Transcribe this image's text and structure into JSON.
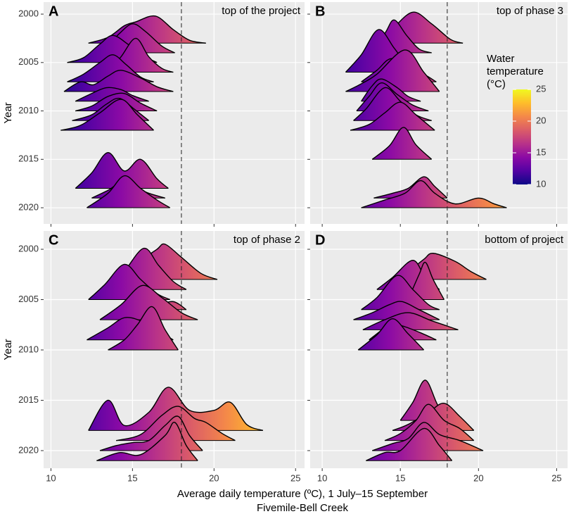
{
  "chart_data": [
    {
      "type": "ridgeline",
      "label": "A",
      "title": "top of the project",
      "xlim": [
        9.55,
        25.55
      ],
      "xticks": [
        10,
        15,
        20,
        25
      ],
      "ylim": [
        1998.76,
        2021.67
      ],
      "yticks": [
        2000,
        2005,
        2010,
        2015,
        2020
      ],
      "ylabel": "Year",
      "vline": 18,
      "ridges": [
        {
          "year": 2003,
          "x": [
            12.3,
            13.5,
            14.5,
            15.2,
            16.4,
            17.5,
            18.5,
            19.5
          ],
          "values": [
            0,
            0.6,
            1.8,
            2.2,
            2.8,
            1.4,
            0.3,
            0
          ]
        },
        {
          "year": 2004,
          "x": [
            12.5,
            13.5,
            14.2,
            15,
            15.8,
            16.8,
            17.6
          ],
          "values": [
            0,
            0.8,
            2,
            3,
            2.2,
            0.7,
            0
          ]
        },
        {
          "year": 2005,
          "x": [
            11,
            12,
            13,
            13.8,
            14.8,
            15.8,
            16.5
          ],
          "values": [
            0,
            0.5,
            1.9,
            2.8,
            1.8,
            0.6,
            0
          ]
        },
        {
          "year": 2006,
          "x": [
            13.5,
            14.3,
            15.2,
            16,
            16.8,
            17.5
          ],
          "values": [
            0,
            1.6,
            3.5,
            1.6,
            0.4,
            0
          ]
        },
        {
          "year": 2007,
          "x": [
            11,
            12,
            13,
            13.8,
            14.6,
            15.5,
            16.3
          ],
          "values": [
            0,
            0.8,
            2,
            2.8,
            1.8,
            0.5,
            0
          ]
        },
        {
          "year": 2008,
          "x": [
            10.8,
            11.8,
            12.6,
            13.5,
            14.3,
            15.5,
            16.5,
            17.5
          ],
          "values": [
            0,
            1,
            0.7,
            1.6,
            2.2,
            1.4,
            0.5,
            0
          ]
        },
        {
          "year": 2009,
          "x": [
            11.5,
            12.5,
            13.4,
            14.3,
            15,
            16
          ],
          "values": [
            0,
            0.8,
            1.4,
            1.2,
            0.6,
            0
          ]
        },
        {
          "year": 2010,
          "x": [
            11.5,
            12.5,
            13.5,
            14.5,
            15.5,
            16.5
          ],
          "values": [
            0,
            0.5,
            1.5,
            1.8,
            0.8,
            0
          ]
        },
        {
          "year": 2011,
          "x": [
            11.3,
            12.5,
            13.4,
            14.2,
            15.1,
            16
          ],
          "values": [
            0,
            0.6,
            1.7,
            2.3,
            1.2,
            0
          ]
        },
        {
          "year": 2012,
          "x": [
            10.6,
            11.8,
            13,
            14.3,
            15.3,
            16.3
          ],
          "values": [
            0,
            0.5,
            1.8,
            3.2,
            1.6,
            0
          ]
        },
        {
          "year": 2018,
          "x": [
            11.5,
            12.5,
            13.5,
            14.5,
            15.5,
            16.5,
            17.2
          ],
          "values": [
            0,
            1.6,
            3.7,
            1.8,
            3,
            1,
            0
          ]
        },
        {
          "year": 2019,
          "x": [
            12.5,
            13.5,
            14.2,
            15,
            16,
            17
          ],
          "values": [
            0,
            0.8,
            1.5,
            1.2,
            0.5,
            0
          ]
        },
        {
          "year": 2020,
          "x": [
            12.2,
            13.5,
            14.5,
            15.5,
            16.5,
            17.3
          ],
          "values": [
            0,
            1.5,
            3.3,
            2,
            0.8,
            0
          ]
        }
      ]
    },
    {
      "type": "ridgeline",
      "label": "B",
      "title": "top of phase 3",
      "xlim": [
        9.23,
        25.7
      ],
      "xticks": [
        10,
        15,
        20,
        25
      ],
      "ylim": [
        1998.76,
        2021.67
      ],
      "yticks": [
        2000,
        2005,
        2010,
        2015,
        2020
      ],
      "vline": 18,
      "ridges": [
        {
          "year": 2003,
          "x": [
            13.5,
            14.5,
            15.8,
            17,
            18.2,
            19
          ],
          "values": [
            0,
            1.5,
            3.2,
            2,
            0.4,
            0
          ]
        },
        {
          "year": 2004,
          "x": [
            13,
            14,
            14.6,
            15.4,
            16.2,
            17
          ],
          "values": [
            0,
            2,
            3.4,
            1.8,
            0.4,
            0
          ]
        },
        {
          "year": 2006,
          "x": [
            11.5,
            12.5,
            13.6,
            14.6,
            15.5,
            16.3
          ],
          "values": [
            0,
            1.8,
            4.4,
            2.5,
            0.6,
            0
          ]
        },
        {
          "year": 2007,
          "x": [
            12.5,
            13.5,
            14.4,
            15.5,
            16.5,
            17.3
          ],
          "values": [
            0,
            1.2,
            2.4,
            1.6,
            0.8,
            0
          ]
        },
        {
          "year": 2008,
          "x": [
            11.5,
            12.5,
            13.5,
            15.3,
            16.5,
            17.5
          ],
          "values": [
            0,
            0.8,
            1.8,
            4.3,
            2,
            0
          ]
        },
        {
          "year": 2009,
          "x": [
            12.5,
            13.2,
            13.8,
            14.8,
            15.5,
            16.3
          ],
          "values": [
            0,
            1.6,
            2.3,
            1.4,
            0.5,
            0
          ]
        },
        {
          "year": 2010,
          "x": [
            12.2,
            13,
            13.8,
            14.8,
            15.8,
            16.8
          ],
          "values": [
            0,
            1.5,
            2.9,
            1.7,
            0.6,
            0
          ]
        },
        {
          "year": 2011,
          "x": [
            12,
            12.8,
            14,
            15,
            16,
            17
          ],
          "values": [
            0,
            1.2,
            3.4,
            2,
            0.6,
            0
          ]
        },
        {
          "year": 2012,
          "x": [
            11.8,
            13,
            14,
            15,
            16,
            17.2
          ],
          "values": [
            0,
            0.6,
            1.8,
            2.9,
            1.6,
            0
          ]
        },
        {
          "year": 2015,
          "x": [
            13.2,
            14.3,
            15.2,
            16,
            17
          ],
          "values": [
            0,
            1.4,
            3.3,
            1.5,
            0
          ]
        },
        {
          "year": 2019,
          "x": [
            13.3,
            14.5,
            15.5,
            16.5,
            17.2,
            18
          ],
          "values": [
            0,
            0.5,
            1,
            2.2,
            1.2,
            0
          ]
        },
        {
          "year": 2020,
          "x": [
            12.5,
            14,
            15.3,
            16.3,
            17.2,
            18.5,
            20,
            21,
            21.8
          ],
          "values": [
            0,
            0.8,
            1.5,
            2.8,
            1.5,
            0.4,
            1,
            0.4,
            0
          ]
        }
      ]
    },
    {
      "type": "ridgeline",
      "label": "C",
      "title": "top of phase 2",
      "xlim": [
        9.55,
        25.55
      ],
      "xticks": [
        10,
        15,
        20,
        25
      ],
      "ylim": [
        1998.18,
        2021.75
      ],
      "yticks": [
        2000,
        2005,
        2010,
        2015,
        2020
      ],
      "ylabel": "Year",
      "vline": 18,
      "ridges": [
        {
          "year": 2003,
          "x": [
            14.5,
            15.5,
            16.5,
            17,
            18,
            19.2,
            20.2
          ],
          "values": [
            0,
            1.8,
            3,
            3.5,
            2.2,
            0.6,
            0
          ]
        },
        {
          "year": 2004,
          "x": [
            13.5,
            14.5,
            15.7,
            16.6,
            17.5,
            18.3
          ],
          "values": [
            0,
            1.8,
            4.1,
            2.4,
            0.8,
            0
          ]
        },
        {
          "year": 2005,
          "x": [
            12.3,
            13.3,
            14.5,
            15.5,
            16.5,
            17.3
          ],
          "values": [
            0,
            1.5,
            3.5,
            2,
            0.6,
            0
          ]
        },
        {
          "year": 2006,
          "x": [
            15.5,
            16.5,
            17.5,
            18.3
          ],
          "values": [
            0,
            0.4,
            0.8,
            0
          ]
        },
        {
          "year": 2007,
          "x": [
            13,
            14.3,
            15.6,
            16.8,
            18,
            19
          ],
          "values": [
            0,
            1.5,
            3.4,
            2.2,
            0.7,
            0
          ]
        },
        {
          "year": 2009,
          "x": [
            12.2,
            13.5,
            14.5,
            15.5,
            16.5,
            17.5
          ],
          "values": [
            0,
            1.2,
            2.2,
            1.9,
            1,
            0
          ]
        },
        {
          "year": 2010,
          "x": [
            13.5,
            14.5,
            15.3,
            16.2,
            17,
            17.8
          ],
          "values": [
            0,
            1,
            2.5,
            4.3,
            2,
            0
          ]
        },
        {
          "year": 2018,
          "x": [
            12.3,
            13.5,
            14.5,
            16,
            17.2,
            18.5,
            20,
            21,
            22,
            23
          ],
          "values": [
            0,
            3,
            0.5,
            1.8,
            4.3,
            2,
            2,
            2.8,
            0.6,
            0
          ]
        },
        {
          "year": 2019,
          "x": [
            14,
            15.5,
            16.8,
            17.8,
            18.8,
            19.5,
            20.5,
            21.3
          ],
          "values": [
            0,
            0.6,
            2.5,
            3.4,
            2.2,
            1.8,
            0.7,
            0
          ]
        },
        {
          "year": 2020,
          "x": [
            13,
            14,
            15,
            16,
            17,
            17.8,
            18.5,
            19.3
          ],
          "values": [
            0,
            0.5,
            0.8,
            1,
            2.5,
            3.4,
            1.5,
            0
          ]
        },
        {
          "year": 2021,
          "x": [
            12.8,
            14.2,
            15.5,
            17,
            17.6,
            18.3,
            19
          ],
          "values": [
            0,
            0.8,
            0.6,
            2.5,
            3.8,
            1.5,
            0
          ]
        }
      ]
    },
    {
      "type": "ridgeline",
      "label": "D",
      "title": "bottom of project",
      "xlim": [
        9.23,
        25.7
      ],
      "xticks": [
        10,
        15,
        20,
        25
      ],
      "ylim": [
        1998.18,
        2021.75
      ],
      "yticks": [
        2000,
        2005,
        2010,
        2015,
        2020
      ],
      "vline": 18,
      "ridges": [
        {
          "year": 2003,
          "x": [
            14.5,
            15.5,
            16.5,
            17.1,
            18.5,
            19.5,
            20.5
          ],
          "values": [
            0,
            0.8,
            2,
            2.6,
            1.8,
            0.8,
            0
          ]
        },
        {
          "year": 2004,
          "x": [
            13.5,
            14.5,
            15.8,
            16.6,
            17.5
          ],
          "values": [
            0,
            1.2,
            2.9,
            1.2,
            0
          ]
        },
        {
          "year": 2005,
          "x": [
            15.5,
            16.2,
            16.6,
            17.1,
            17.8
          ],
          "values": [
            0,
            2.5,
            3.7,
            2,
            0
          ]
        },
        {
          "year": 2006,
          "x": [
            12.5,
            13.5,
            14.8,
            15.8,
            16.8,
            17.5
          ],
          "values": [
            0,
            1.2,
            3.4,
            2,
            0.5,
            0
          ]
        },
        {
          "year": 2007,
          "x": [
            12,
            13.2,
            14.3,
            15.1,
            16.2,
            17.5
          ],
          "values": [
            0,
            0.7,
            1.5,
            1.8,
            1,
            0
          ]
        },
        {
          "year": 2008,
          "x": [
            12.6,
            14,
            15.5,
            17,
            18.7
          ],
          "values": [
            0,
            1,
            1.7,
            0.9,
            0
          ]
        },
        {
          "year": 2009,
          "x": [
            13,
            14,
            14.5,
            15.3,
            16.3,
            17.3
          ],
          "values": [
            0,
            1.2,
            1.6,
            1.3,
            0.7,
            0
          ]
        },
        {
          "year": 2010,
          "x": [
            12.3,
            13.5,
            14.5,
            15.5,
            16.5
          ],
          "values": [
            0,
            1.5,
            3.1,
            1.6,
            0
          ]
        },
        {
          "year": 2017,
          "x": [
            15,
            15.8,
            16.6,
            17.4,
            18.2
          ],
          "values": [
            0,
            1.8,
            4,
            1.5,
            0
          ]
        },
        {
          "year": 2018,
          "x": [
            14.5,
            15.5,
            16.8,
            17.8,
            18.8,
            19.7
          ],
          "values": [
            0,
            0.6,
            1.8,
            2.7,
            1.4,
            0
          ]
        },
        {
          "year": 2019,
          "x": [
            14,
            15,
            16,
            16.8,
            17.8,
            18.8,
            19.7
          ],
          "values": [
            0,
            0.7,
            2,
            3.6,
            2,
            1.2,
            0
          ]
        },
        {
          "year": 2020,
          "x": [
            13.2,
            14.5,
            15.5,
            16.5,
            17.5,
            18.8,
            20.3
          ],
          "values": [
            0,
            0.7,
            1.2,
            2.8,
            1.6,
            1,
            0
          ]
        },
        {
          "year": 2021,
          "x": [
            12.8,
            14,
            15,
            16.5,
            17.5,
            18.3
          ],
          "values": [
            0,
            0.8,
            1,
            3.2,
            1.5,
            0
          ]
        }
      ]
    }
  ],
  "xlabel": "Average daily temperature (ºC), 1 July–15 September",
  "caption": "Fivemile-Bell Creek",
  "legend": {
    "title": [
      "Water",
      "temperature",
      "(°C)"
    ],
    "lim": [
      10,
      25
    ],
    "ticks": [
      10,
      15,
      20,
      25
    ],
    "colors": [
      "#0d0887",
      "#5302a3",
      "#8b0aa5",
      "#b83289",
      "#db5c68",
      "#f48849",
      "#febd2a",
      "#f0f921"
    ]
  }
}
